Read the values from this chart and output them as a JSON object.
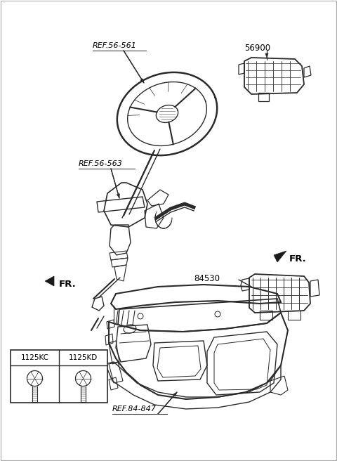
{
  "background_color": "#ffffff",
  "line_color": "#2a2a2a",
  "text_color": "#000000",
  "labels": {
    "ref56561": "REF.56-561",
    "ref56563": "REF.56-563",
    "ref84847": "REF.84-847",
    "part56900": "56900",
    "part84530": "84530",
    "part1125kc": "1125KC",
    "part1125kd": "1125KD",
    "fr1": "FR.",
    "fr2": "FR."
  },
  "figsize": [
    4.8,
    6.56
  ],
  "dpi": 100
}
